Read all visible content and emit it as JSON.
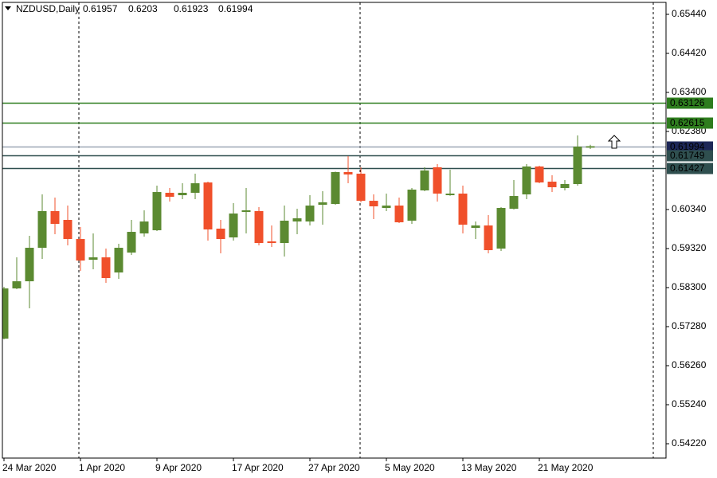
{
  "chart_data": {
    "type": "candlestick",
    "title": "NZDUSD,Daily",
    "categories": [
      "24 Mar 2020",
      null,
      null,
      null,
      null,
      null,
      "1 Apr 2020",
      null,
      null,
      null,
      null,
      null,
      "9 Apr 2020",
      null,
      null,
      null,
      null,
      null,
      "17 Apr 2020",
      null,
      null,
      null,
      null,
      null,
      "27 Apr 2020",
      null,
      null,
      null,
      null,
      null,
      "5 May 2020",
      null,
      null,
      null,
      null,
      null,
      "13 May 2020",
      null,
      null,
      null,
      null,
      null,
      "21 May 2020",
      null,
      null,
      null,
      null
    ],
    "open": [
      0.56966,
      0.58278,
      0.58465,
      0.5934,
      0.60298,
      0.60069,
      0.59569,
      0.59028,
      0.5909,
      0.58695,
      0.59215,
      0.59715,
      0.59798,
      0.60777,
      0.60714,
      0.60777,
      0.61047,
      0.5984,
      0.59611,
      0.60277,
      0.60298,
      0.59507,
      0.59465,
      0.60027,
      0.60027,
      0.60464,
      0.60485,
      0.61318,
      0.61276,
      0.60568,
      0.60381,
      0.60443,
      0.60048,
      0.60839,
      0.61443,
      0.60714,
      0.60756,
      0.59861,
      0.59923,
      0.59319,
      0.6036,
      0.60735,
      0.61464,
      0.61068,
      0.60902,
      0.61006,
      0.61957
    ],
    "high": [
      0.5832,
      0.5909,
      0.59652,
      0.60735,
      0.60652,
      0.60443,
      0.59881,
      0.59715,
      0.59319,
      0.59444,
      0.60069,
      0.60319,
      0.60964,
      0.60902,
      0.61026,
      0.61276,
      0.61068,
      0.60069,
      0.60506,
      0.60902,
      0.60402,
      0.59923,
      0.60443,
      0.6036,
      0.60714,
      0.60818,
      0.6133,
      0.61734,
      0.61443,
      0.60735,
      0.60756,
      0.60652,
      0.60902,
      0.61443,
      0.61526,
      0.6138,
      0.60964,
      0.60027,
      0.60194,
      0.60402,
      0.6111,
      0.61526,
      0.61484,
      0.61235,
      0.6111,
      0.62276,
      0.6203
    ],
    "low": [
      0.5695,
      0.58257,
      0.57758,
      0.59049,
      0.59694,
      0.59402,
      0.58736,
      0.58778,
      0.58424,
      0.58528,
      0.59153,
      0.59632,
      0.59777,
      0.60548,
      0.6061,
      0.6061,
      0.59527,
      0.59194,
      0.59527,
      0.59715,
      0.59402,
      0.59361,
      0.59111,
      0.59694,
      0.59923,
      0.59944,
      0.60464,
      0.61026,
      0.60527,
      0.6009,
      0.60298,
      0.59985,
      0.59965,
      0.60818,
      0.60548,
      0.607,
      0.59715,
      0.59569,
      0.59194,
      0.59257,
      0.60339,
      0.6061,
      0.61026,
      0.60797,
      0.60839,
      0.60964,
      0.61923
    ],
    "close": [
      0.58278,
      0.58465,
      0.5934,
      0.60298,
      0.59965,
      0.59569,
      0.59007,
      0.5909,
      0.58549,
      0.5934,
      0.59756,
      0.60027,
      0.60797,
      0.60673,
      0.60777,
      0.61026,
      0.59819,
      0.59569,
      0.60235,
      0.60319,
      0.59465,
      0.59465,
      0.60048,
      0.6011,
      0.60443,
      0.60527,
      0.61318,
      0.61255,
      0.60568,
      0.60423,
      0.60443,
      0.60006,
      0.6086,
      0.6136,
      0.60756,
      0.60756,
      0.59944,
      0.59923,
      0.59278,
      0.60381,
      0.60693,
      0.61464,
      0.61047,
      0.60922,
      0.61006,
      0.61984,
      0.61994
    ],
    "up_color": "#5b8a31",
    "down_color": "#f0502b",
    "ylim": [
      0.53845,
      0.65752
    ],
    "yticks": [
      {
        "value": 0.5422,
        "label": "0.54220"
      },
      {
        "value": 0.5524,
        "label": "0.55240"
      },
      {
        "value": 0.5626,
        "label": "0.56260"
      },
      {
        "value": 0.5728,
        "label": "0.57280"
      },
      {
        "value": 0.583,
        "label": "0.58300"
      },
      {
        "value": 0.5932,
        "label": "0.59320"
      },
      {
        "value": 0.6034,
        "label": "0.60340"
      },
      {
        "value": 0.6238,
        "label": "0.62380"
      },
      {
        "value": 0.634,
        "label": "0.63400"
      },
      {
        "value": 0.6442,
        "label": "0.64420"
      },
      {
        "value": 0.6544,
        "label": "0.65440"
      }
    ],
    "levels": [
      {
        "value": 0.63126,
        "color": "#2e7d1e",
        "label_color": "#2e7d1e"
      },
      {
        "value": 0.62615,
        "color": "#2e7d1e",
        "label_color": "#2e7d1e"
      },
      {
        "value": 0.61994,
        "color": "#9aa6b4",
        "label_color": "#1d2757"
      },
      {
        "value": 0.61749,
        "color": "#2f4f4f",
        "label_color": "#2f4f4f"
      },
      {
        "value": 0.61427,
        "color": "#2f4f4f",
        "label_color": "#2f4f4f"
      }
    ]
  }
}
